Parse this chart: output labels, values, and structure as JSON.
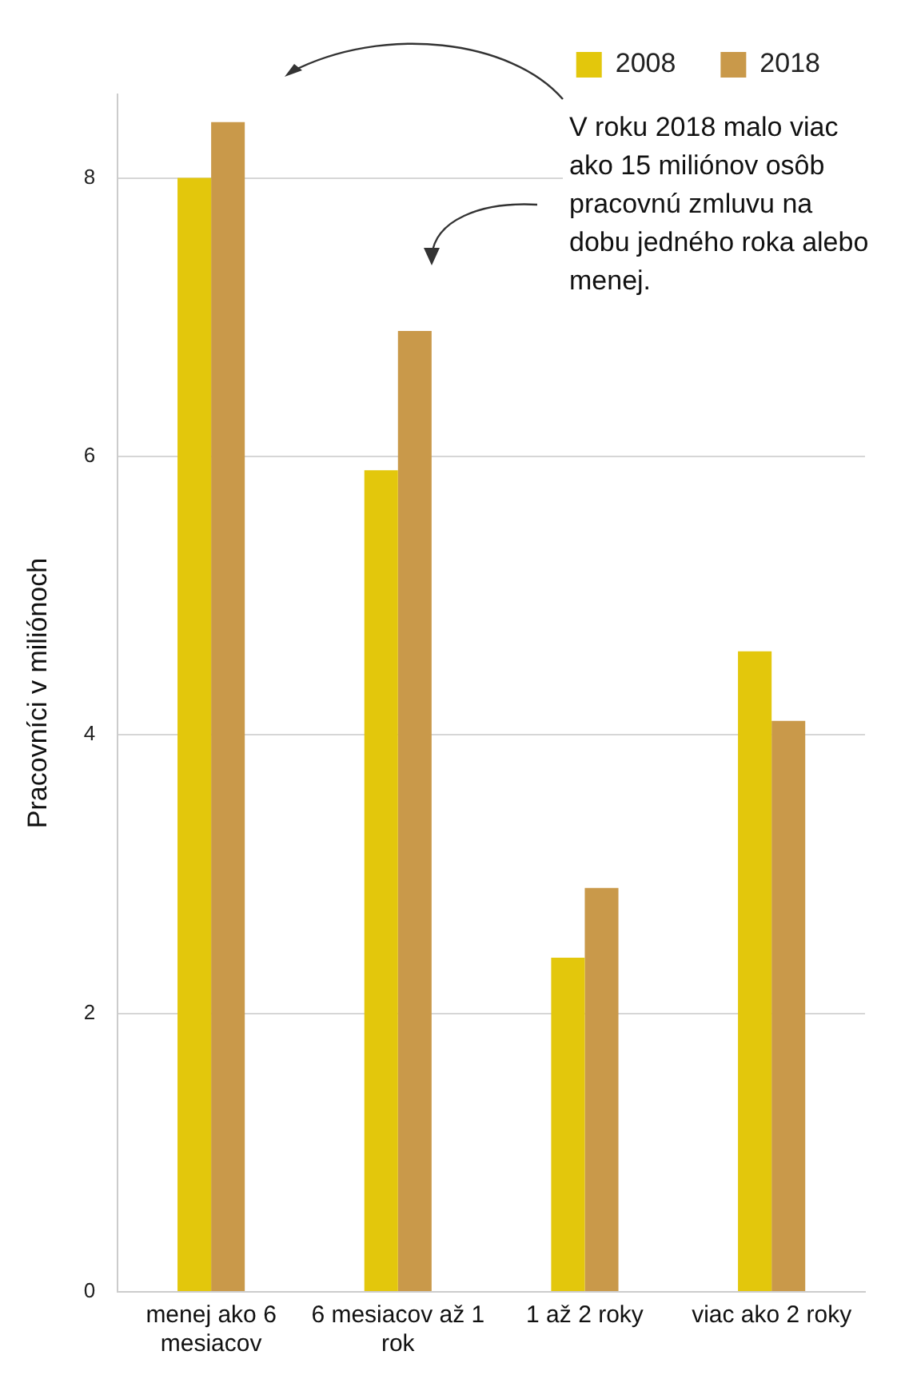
{
  "chart_data": {
    "type": "bar",
    "ylabel": "Pracovníci v miliónoch",
    "categories": [
      "menej ako 6 mesiacov",
      "6 mesiacov až 1 rok",
      "1 až 2 roky",
      "viac ako 2 roky"
    ],
    "series": [
      {
        "name": "2008",
        "color": "#e3c70c",
        "values": [
          8.0,
          5.9,
          2.4,
          4.6
        ]
      },
      {
        "name": "2018",
        "color": "#c9994a",
        "values": [
          8.4,
          6.9,
          2.9,
          4.1
        ]
      }
    ],
    "ylim": [
      0,
      8.6
    ],
    "yticks": [
      0,
      2,
      4,
      6,
      8
    ],
    "grid": "y",
    "legend": "top right",
    "annotations": [
      "V roku 2018 malo viac ako 15 miliónov osôb pracovnú zmluvu na dobu jedného roka alebo menej."
    ]
  }
}
